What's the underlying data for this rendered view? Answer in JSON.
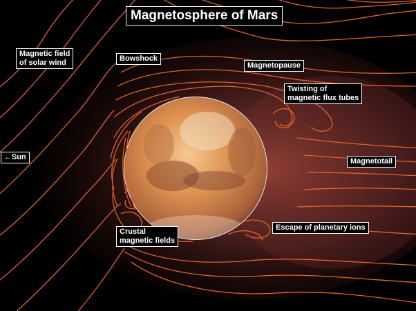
{
  "title": "Magnetosphere of Mars",
  "labels": {
    "solar_wind_field": [
      "Magnetic field",
      "of solar wind"
    ],
    "bowshock": "Bowshock",
    "magnetopause": "Magnetopause",
    "twisting": [
      "Twisting of",
      "magnetic flux tubes"
    ],
    "sun": "←Sun",
    "magnetotail": "Magnetotail",
    "crustal": [
      "Crustal",
      "magnetic fields"
    ],
    "escape": "Escape of planetary ions"
  },
  "colors": {
    "background": "#000000",
    "field_lines": "#e0642a",
    "glow": "#b04a40",
    "planet_light": "#f0b070",
    "planet_dark": "#9a5a3a",
    "label_text": "#ffffff"
  }
}
